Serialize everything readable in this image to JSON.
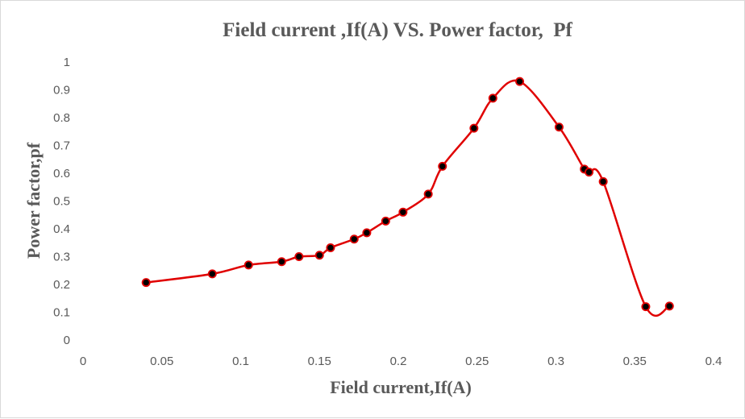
{
  "chart_data": {
    "type": "line",
    "title": "Field current ,If(A) VS. Power factor,  Pf",
    "xlabel": "Field current,If(A)",
    "ylabel": "Power factor,pf",
    "xlim": [
      0,
      0.4
    ],
    "ylim": [
      0,
      1
    ],
    "x_ticks": [
      "0",
      "0.05",
      "0.1",
      "0.15",
      "0.2",
      "0.25",
      "0.3",
      "0.35",
      "0.4"
    ],
    "y_ticks": [
      "0",
      "0.1",
      "0.2",
      "0.3",
      "0.4",
      "0.5",
      "0.6",
      "0.7",
      "0.8",
      "0.9",
      "1"
    ],
    "grid": false,
    "legend": "none",
    "smoothed": true,
    "series": [
      {
        "line_color": "#e00000",
        "marker_color": "#000000",
        "points": [
          [
            0.04,
            0.207
          ],
          [
            0.082,
            0.238
          ],
          [
            0.105,
            0.27
          ],
          [
            0.126,
            0.282
          ],
          [
            0.137,
            0.3
          ],
          [
            0.15,
            0.305
          ],
          [
            0.157,
            0.332
          ],
          [
            0.172,
            0.363
          ],
          [
            0.18,
            0.386
          ],
          [
            0.192,
            0.428
          ],
          [
            0.203,
            0.46
          ],
          [
            0.219,
            0.525
          ],
          [
            0.228,
            0.625
          ],
          [
            0.248,
            0.762
          ],
          [
            0.26,
            0.87
          ],
          [
            0.277,
            0.93
          ],
          [
            0.302,
            0.766
          ],
          [
            0.318,
            0.615
          ],
          [
            0.321,
            0.604
          ],
          [
            0.33,
            0.57
          ],
          [
            0.357,
            0.12
          ],
          [
            0.372,
            0.122
          ]
        ]
      }
    ]
  }
}
